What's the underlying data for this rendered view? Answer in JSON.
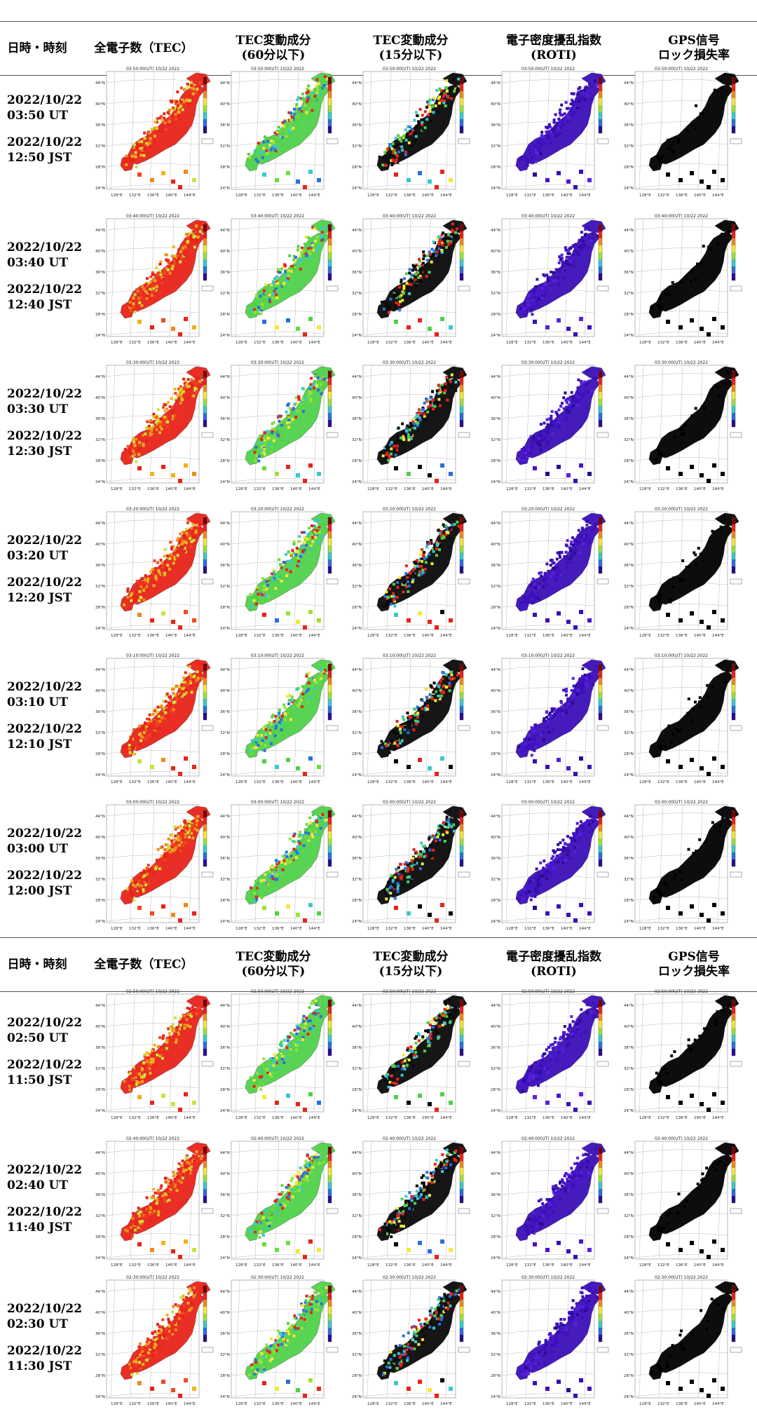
{
  "headers": {
    "datetime": "日時・時刻",
    "col_tec": "全電子数（TEC）",
    "col_dtec60": [
      "TEC変動成分",
      "(60分以下)"
    ],
    "col_dtec15": [
      "TEC変動成分",
      "(15分以下)"
    ],
    "col_roti": [
      "電子密度擾乱指数",
      "(ROTI)"
    ],
    "col_lol": [
      "GPS信号",
      "ロック損失率"
    ]
  },
  "map_axis_labels": {
    "lat": [
      "44°N",
      "40°N",
      "36°N",
      "32°N",
      "28°N",
      "24°N"
    ],
    "lon": [
      "128°E",
      "132°E",
      "136°E",
      "140°E",
      "144°E"
    ]
  },
  "rows": [
    {
      "ut": "2022/10/22 03:50 UT",
      "jst": "2022/10/22 12:50 JST",
      "stamp": "03:50:00(UT) 10/22 2022"
    },
    {
      "ut": "2022/10/22 03:40 UT",
      "jst": "2022/10/22 12:40 JST",
      "stamp": "03:40:00(UT) 10/22 2022"
    },
    {
      "ut": "2022/10/22 03:30 UT",
      "jst": "2022/10/22 12:30 JST",
      "stamp": "03:30:00(UT) 10/22 2022"
    },
    {
      "ut": "2022/10/22 03:20 UT",
      "jst": "2022/10/22 12:20 JST",
      "stamp": "03:20:00(UT) 10/22 2022"
    },
    {
      "ut": "2022/10/22 03:10 UT",
      "jst": "2022/10/22 12:10 JST",
      "stamp": "03:10:00(UT) 10/22 2022"
    },
    {
      "ut": "2022/10/22 03:00 UT",
      "jst": "2022/10/22 12:00 JST",
      "stamp": "03:00:00(UT) 10/22 2022"
    },
    {
      "ut": "2022/10/22 02:50 UT",
      "jst": "2022/10/22 11:50 JST",
      "stamp": "02:50:00(UT) 10/22 2022"
    },
    {
      "ut": "2022/10/22 02:40 UT",
      "jst": "2022/10/22 11:40 JST",
      "stamp": "02:40:00(UT) 10/22 2022"
    },
    {
      "ut": "2022/10/22 02:30 UT",
      "jst": "2022/10/22 11:30 JST",
      "stamp": "02:30:00(UT) 10/22 2022"
    }
  ],
  "colors": {
    "tec_high": "#e8231a",
    "tec_mid": "#f08a1c",
    "tec_low": "#c9e43a",
    "dtec_fill": "#4fd14a",
    "dtec15_fill": "#0a0a0a",
    "roti_fill": "#3b0fb8",
    "lol_fill": "#000000",
    "rule": "#555555"
  }
}
